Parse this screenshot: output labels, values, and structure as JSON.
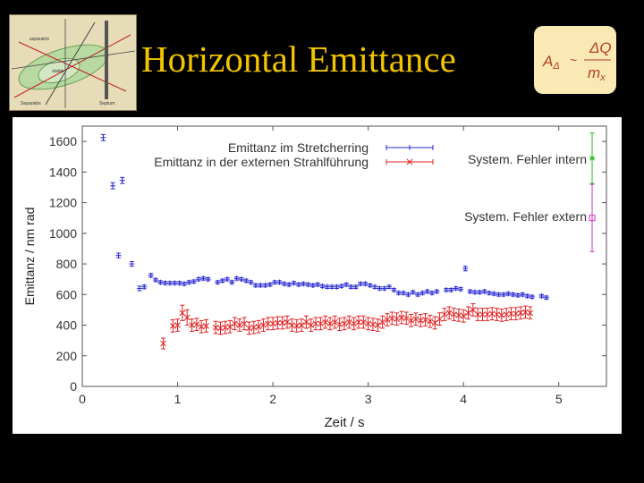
{
  "slide": {
    "title": "Horizontal Emittance"
  },
  "formula": {
    "lhs": "A",
    "lhs_sub": "Δ",
    "relation": "~",
    "num": "ΔQ",
    "den": "m",
    "den_sub": "x"
  },
  "thumbnail": {
    "labels": [
      "separatrix",
      "stable",
      "Separatrix",
      "Septum"
    ]
  },
  "colors": {
    "title": "#f2c400",
    "series_blue": "#2a2ad4",
    "series_red": "#e02020",
    "marker_green": "#22bb22",
    "marker_magenta": "#cc33cc"
  },
  "chart_data": {
    "type": "scatter",
    "xlabel": "Zeit / s",
    "ylabel": "Emittanz / nm rad",
    "xlim": [
      0,
      5.5
    ],
    "ylim": [
      0,
      1700
    ],
    "xticks": [
      "0",
      "1",
      "2",
      "3",
      "4",
      "5"
    ],
    "yticks": [
      "0",
      "200",
      "400",
      "600",
      "800",
      "1000",
      "1200",
      "1400",
      "1600"
    ],
    "legend_position": "top",
    "series": [
      {
        "name": "Emittanz im Stretcherring",
        "marker": "plus",
        "points": [
          [
            0.22,
            1625,
            20
          ],
          [
            0.32,
            1310,
            20
          ],
          [
            0.42,
            1345,
            20
          ],
          [
            0.38,
            855,
            15
          ],
          [
            0.52,
            800,
            15
          ],
          [
            0.6,
            640,
            15
          ],
          [
            0.65,
            650,
            12
          ],
          [
            0.72,
            725,
            12
          ],
          [
            0.77,
            695,
            10
          ],
          [
            0.82,
            680,
            10
          ],
          [
            0.87,
            675,
            10
          ],
          [
            0.92,
            675,
            10
          ],
          [
            0.97,
            675,
            10
          ],
          [
            1.02,
            675,
            10
          ],
          [
            1.07,
            670,
            10
          ],
          [
            1.12,
            680,
            10
          ],
          [
            1.17,
            685,
            10
          ],
          [
            1.22,
            700,
            10
          ],
          [
            1.27,
            705,
            10
          ],
          [
            1.32,
            700,
            10
          ],
          [
            1.42,
            680,
            10
          ],
          [
            1.47,
            690,
            10
          ],
          [
            1.52,
            700,
            10
          ],
          [
            1.57,
            680,
            10
          ],
          [
            1.62,
            705,
            10
          ],
          [
            1.67,
            700,
            10
          ],
          [
            1.72,
            690,
            10
          ],
          [
            1.77,
            680,
            10
          ],
          [
            1.82,
            660,
            10
          ],
          [
            1.87,
            660,
            10
          ],
          [
            1.92,
            660,
            10
          ],
          [
            1.97,
            665,
            10
          ],
          [
            2.02,
            680,
            10
          ],
          [
            2.07,
            680,
            10
          ],
          [
            2.12,
            670,
            10
          ],
          [
            2.17,
            665,
            10
          ],
          [
            2.22,
            675,
            10
          ],
          [
            2.27,
            665,
            10
          ],
          [
            2.32,
            670,
            10
          ],
          [
            2.37,
            665,
            10
          ],
          [
            2.42,
            660,
            10
          ],
          [
            2.47,
            665,
            10
          ],
          [
            2.52,
            655,
            10
          ],
          [
            2.57,
            650,
            10
          ],
          [
            2.62,
            650,
            10
          ],
          [
            2.67,
            650,
            10
          ],
          [
            2.72,
            655,
            10
          ],
          [
            2.77,
            665,
            10
          ],
          [
            2.82,
            650,
            10
          ],
          [
            2.87,
            650,
            10
          ],
          [
            2.92,
            670,
            10
          ],
          [
            2.97,
            670,
            10
          ],
          [
            3.02,
            660,
            10
          ],
          [
            3.07,
            650,
            10
          ],
          [
            3.12,
            640,
            10
          ],
          [
            3.17,
            640,
            10
          ],
          [
            3.22,
            650,
            10
          ],
          [
            3.27,
            630,
            10
          ],
          [
            3.32,
            610,
            10
          ],
          [
            3.37,
            610,
            10
          ],
          [
            3.42,
            600,
            10
          ],
          [
            3.47,
            615,
            10
          ],
          [
            3.52,
            600,
            10
          ],
          [
            3.57,
            610,
            10
          ],
          [
            3.62,
            620,
            10
          ],
          [
            3.67,
            610,
            10
          ],
          [
            3.72,
            620,
            10
          ],
          [
            3.82,
            630,
            10
          ],
          [
            3.87,
            630,
            10
          ],
          [
            3.92,
            640,
            10
          ],
          [
            3.97,
            635,
            10
          ],
          [
            4.02,
            770,
            15
          ],
          [
            4.07,
            620,
            10
          ],
          [
            4.12,
            615,
            10
          ],
          [
            4.17,
            615,
            10
          ],
          [
            4.22,
            620,
            10
          ],
          [
            4.27,
            610,
            10
          ],
          [
            4.32,
            605,
            10
          ],
          [
            4.37,
            600,
            10
          ],
          [
            4.42,
            600,
            10
          ],
          [
            4.47,
            605,
            10
          ],
          [
            4.52,
            600,
            10
          ],
          [
            4.57,
            595,
            10
          ],
          [
            4.62,
            600,
            10
          ],
          [
            4.67,
            590,
            10
          ],
          [
            4.72,
            585,
            10
          ],
          [
            4.82,
            590,
            10
          ],
          [
            4.87,
            580,
            10
          ]
        ]
      },
      {
        "name": "Emittanz in der externen Strahlführung",
        "marker": "cross",
        "points": [
          [
            0.85,
            280,
            35
          ],
          [
            0.95,
            395,
            40
          ],
          [
            1.0,
            400,
            40
          ],
          [
            1.05,
            480,
            50
          ],
          [
            1.1,
            450,
            50
          ],
          [
            1.15,
            400,
            40
          ],
          [
            1.2,
            405,
            40
          ],
          [
            1.25,
            390,
            40
          ],
          [
            1.3,
            395,
            40
          ],
          [
            1.4,
            385,
            40
          ],
          [
            1.45,
            380,
            40
          ],
          [
            1.5,
            385,
            40
          ],
          [
            1.55,
            390,
            40
          ],
          [
            1.6,
            410,
            40
          ],
          [
            1.65,
            400,
            40
          ],
          [
            1.7,
            410,
            40
          ],
          [
            1.75,
            380,
            40
          ],
          [
            1.8,
            385,
            40
          ],
          [
            1.85,
            390,
            40
          ],
          [
            1.9,
            400,
            40
          ],
          [
            1.95,
            410,
            40
          ],
          [
            2.0,
            410,
            40
          ],
          [
            2.05,
            415,
            40
          ],
          [
            2.1,
            415,
            40
          ],
          [
            2.15,
            420,
            40
          ],
          [
            2.2,
            400,
            40
          ],
          [
            2.25,
            395,
            40
          ],
          [
            2.3,
            400,
            40
          ],
          [
            2.35,
            420,
            40
          ],
          [
            2.4,
            400,
            40
          ],
          [
            2.45,
            410,
            40
          ],
          [
            2.5,
            410,
            40
          ],
          [
            2.55,
            420,
            40
          ],
          [
            2.6,
            410,
            40
          ],
          [
            2.65,
            420,
            40
          ],
          [
            2.7,
            405,
            40
          ],
          [
            2.75,
            410,
            40
          ],
          [
            2.8,
            420,
            40
          ],
          [
            2.85,
            410,
            40
          ],
          [
            2.9,
            420,
            40
          ],
          [
            2.95,
            420,
            40
          ],
          [
            3.0,
            410,
            40
          ],
          [
            3.05,
            405,
            40
          ],
          [
            3.1,
            400,
            40
          ],
          [
            3.15,
            420,
            40
          ],
          [
            3.2,
            435,
            40
          ],
          [
            3.25,
            445,
            40
          ],
          [
            3.3,
            440,
            40
          ],
          [
            3.35,
            450,
            40
          ],
          [
            3.4,
            445,
            40
          ],
          [
            3.45,
            430,
            40
          ],
          [
            3.5,
            440,
            40
          ],
          [
            3.55,
            430,
            40
          ],
          [
            3.6,
            435,
            40
          ],
          [
            3.65,
            425,
            40
          ],
          [
            3.7,
            415,
            40
          ],
          [
            3.75,
            440,
            40
          ],
          [
            3.8,
            470,
            40
          ],
          [
            3.85,
            480,
            40
          ],
          [
            3.9,
            470,
            40
          ],
          [
            3.95,
            465,
            40
          ],
          [
            4.0,
            460,
            40
          ],
          [
            4.05,
            480,
            40
          ],
          [
            4.1,
            500,
            40
          ],
          [
            4.15,
            470,
            40
          ],
          [
            4.2,
            470,
            40
          ],
          [
            4.25,
            470,
            40
          ],
          [
            4.3,
            475,
            40
          ],
          [
            4.35,
            470,
            40
          ],
          [
            4.4,
            465,
            40
          ],
          [
            4.45,
            470,
            40
          ],
          [
            4.5,
            475,
            40
          ],
          [
            4.55,
            475,
            40
          ],
          [
            4.6,
            480,
            40
          ],
          [
            4.65,
            485,
            40
          ],
          [
            4.7,
            480,
            40
          ]
        ]
      },
      {
        "name": "System. Fehler intern",
        "marker": "star",
        "points": [
          [
            5.35,
            1490,
            165
          ]
        ]
      },
      {
        "name": "System. Fehler extern",
        "marker": "square",
        "points": [
          [
            5.35,
            1100,
            220
          ]
        ]
      }
    ]
  }
}
